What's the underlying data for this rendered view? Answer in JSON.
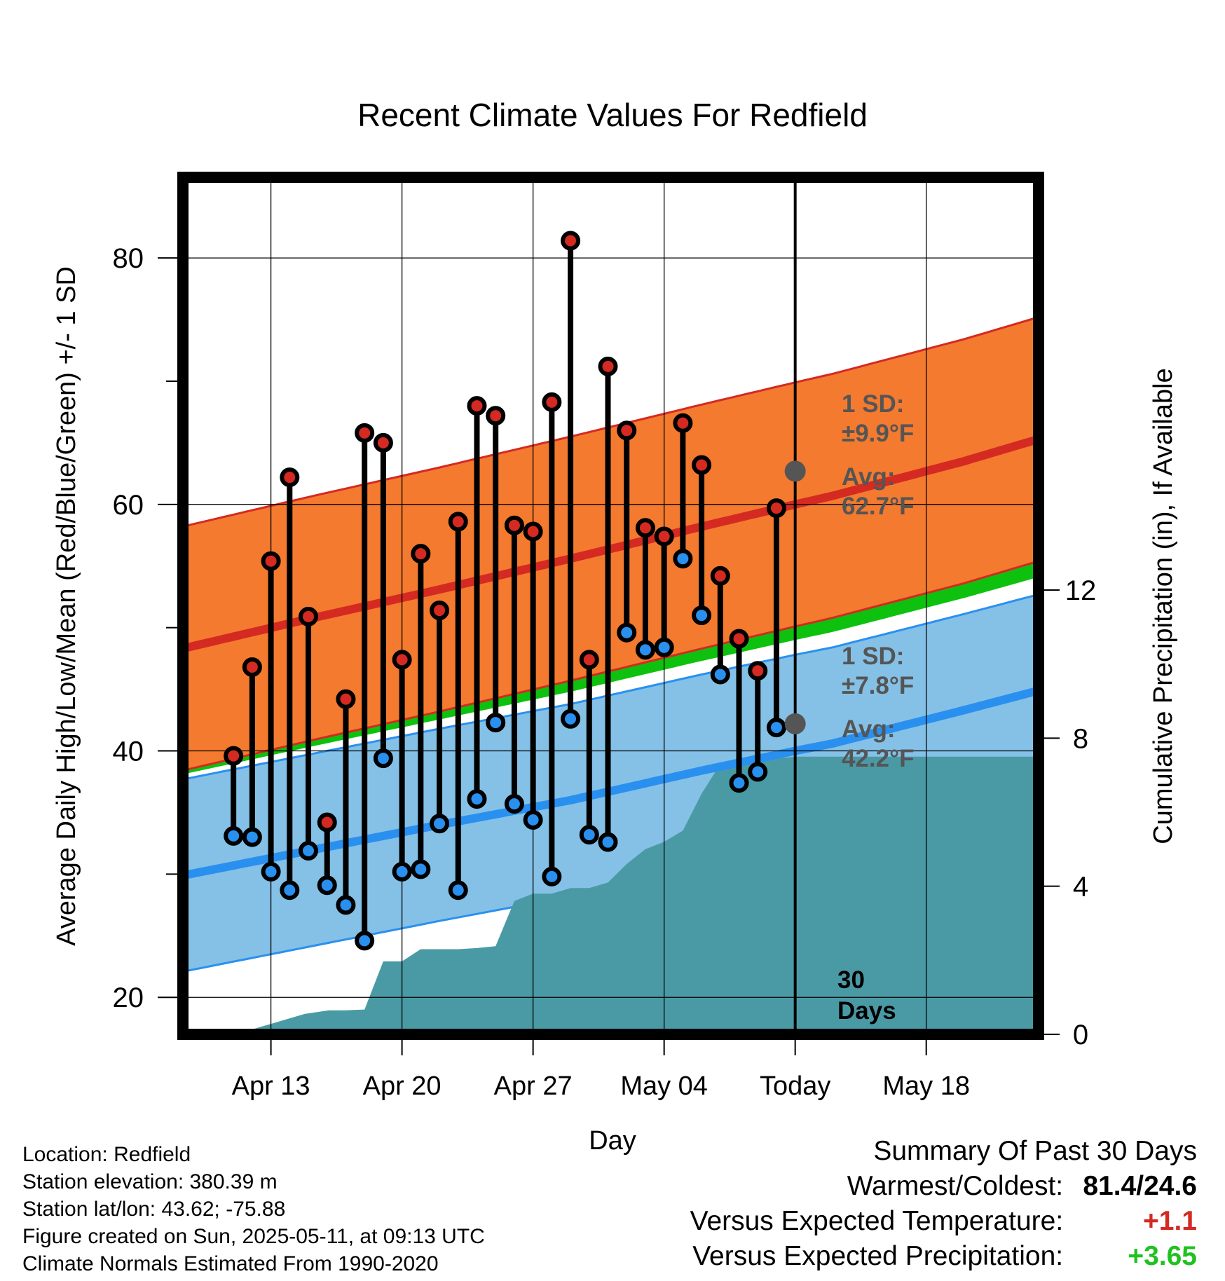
{
  "chart_data": {
    "type": "line",
    "title": "Recent Climate Values For Redfield",
    "xlabel": "Day",
    "ylabel": "Average Daily High/Low/Mean (Red/Blue/Green) +/- 1 SD",
    "y2label": "Cumulative Precipitation (in), If Available",
    "ylim": [
      17,
      87
    ],
    "y2lim": [
      0,
      23.3
    ],
    "x_days_range": [
      -33,
      13
    ],
    "x_ticks": [
      {
        "day": -28,
        "label": "Apr 13"
      },
      {
        "day": -21,
        "label": "Apr 20"
      },
      {
        "day": -14,
        "label": "Apr 27"
      },
      {
        "day": -7,
        "label": "May 04"
      },
      {
        "day": 0,
        "label": "Today"
      },
      {
        "day": 7,
        "label": "May 18"
      }
    ],
    "y_ticks": [
      20,
      40,
      60,
      80
    ],
    "y_minor_ticks": [
      30,
      50,
      70
    ],
    "y2_ticks": [
      0,
      4,
      8,
      12
    ],
    "grid": true,
    "colors": {
      "high_band": "#f47a2f",
      "high_band_edge": "#d42a22",
      "high_line": "#d42a22",
      "low_band": "#85c1e6",
      "low_band_edge": "#2a90ef",
      "low_line": "#2a90ef",
      "mean_band": "#0ec10e",
      "precip": "#4a9aa5",
      "high_dot": "#d42a22",
      "low_dot": "#2a90ef",
      "avg_dot": "#555555",
      "annotation": "#555555",
      "positive_temp": "#d42a22",
      "positive_precip": "#1fc21f"
    },
    "normals": {
      "day": [
        -33,
        -26,
        -19,
        -12,
        -5,
        0,
        2,
        9,
        13
      ],
      "high_avg": [
        48.2,
        50.7,
        53.1,
        55.6,
        58.2,
        60.0,
        60.7,
        63.5,
        65.3
      ],
      "low_avg": [
        29.8,
        31.9,
        34.0,
        36.0,
        38.4,
        40.0,
        40.6,
        43.3,
        44.9
      ]
    },
    "high_sd": 9.9,
    "low_sd": 7.8,
    "series": [
      {
        "name": "High",
        "day": [
          -30,
          -29,
          -28,
          -27,
          -26,
          -25,
          -24,
          -23,
          -22,
          -21,
          -20,
          -19,
          -18,
          -17,
          -16,
          -15,
          -14,
          -13,
          -12,
          -11,
          -10,
          -9,
          -8,
          -7,
          -6,
          -5,
          -4,
          -3,
          -2,
          -1
        ],
        "values": [
          39.6,
          46.8,
          55.4,
          62.2,
          50.9,
          34.2,
          44.2,
          65.8,
          65.0,
          47.4,
          56.0,
          51.4,
          58.6,
          68.0,
          67.2,
          58.3,
          57.8,
          68.3,
          81.4,
          47.4,
          71.2,
          66.0,
          58.1,
          57.4,
          66.6,
          63.2,
          54.2,
          49.1,
          46.5,
          59.7
        ]
      },
      {
        "name": "Low",
        "day": [
          -30,
          -29,
          -28,
          -27,
          -26,
          -25,
          -24,
          -23,
          -22,
          -21,
          -20,
          -19,
          -18,
          -17,
          -16,
          -15,
          -14,
          -13,
          -12,
          -11,
          -10,
          -9,
          -8,
          -7,
          -6,
          -5,
          -4,
          -3,
          -2,
          -1
        ],
        "values": [
          33.1,
          33.0,
          30.2,
          28.7,
          31.9,
          29.1,
          27.5,
          24.6,
          39.4,
          30.2,
          30.4,
          34.1,
          28.7,
          36.1,
          42.3,
          35.7,
          34.4,
          29.8,
          42.6,
          33.2,
          32.6,
          49.6,
          48.2,
          48.4,
          55.6,
          51.0,
          46.2,
          37.4,
          38.3,
          41.9
        ]
      },
      {
        "name": "Cumulative Precipitation",
        "day": [
          -29.9,
          -26.2,
          -24.9,
          -24.0,
          -23.0,
          -22.0,
          -21.0,
          -20.0,
          -19.0,
          -18.0,
          -17.0,
          -16.0,
          -15.0,
          -14.0,
          -13.0,
          -12.0,
          -11.0,
          -10.0,
          -9.0,
          -8.0,
          -7.0,
          -6.0,
          -5.0,
          -4.0,
          0.0,
          13.0
        ],
        "values": [
          0.0,
          0.55,
          0.65,
          0.65,
          0.67,
          1.97,
          1.97,
          2.3,
          2.3,
          2.3,
          2.33,
          2.38,
          3.6,
          3.8,
          3.8,
          3.95,
          3.95,
          4.1,
          4.6,
          5.0,
          5.2,
          5.5,
          6.5,
          7.3,
          7.5,
          7.5
        ]
      }
    ],
    "annotations": {
      "high_sd": "1 SD:\n±9.9°F",
      "high_avg": "Avg:\n62.7°F",
      "high_avg_value": 62.7,
      "low_sd": "1 SD:\n±7.8°F",
      "low_avg": "Avg:\n42.2°F",
      "low_avg_value": 42.2,
      "days": "30\nDays"
    }
  },
  "footer": {
    "location": "Location: Redfield",
    "elevation": "Station elevation: 380.39 m",
    "latlon": "Station lat/lon: 43.62; -75.88",
    "created": "Figure created on Sun, 2025-05-11, at 09:13 UTC",
    "normals": "Climate Normals Estimated From 1990-2020"
  },
  "summary": {
    "title": "Summary Of Past 30 Days",
    "warmest_label": "Warmest/Coldest:",
    "warmest_value": "81.4/24.6",
    "temp_label": "Versus Expected Temperature:",
    "temp_value": "+1.1",
    "precip_label": "Versus Expected Precipitation:",
    "precip_value": "+3.65"
  }
}
